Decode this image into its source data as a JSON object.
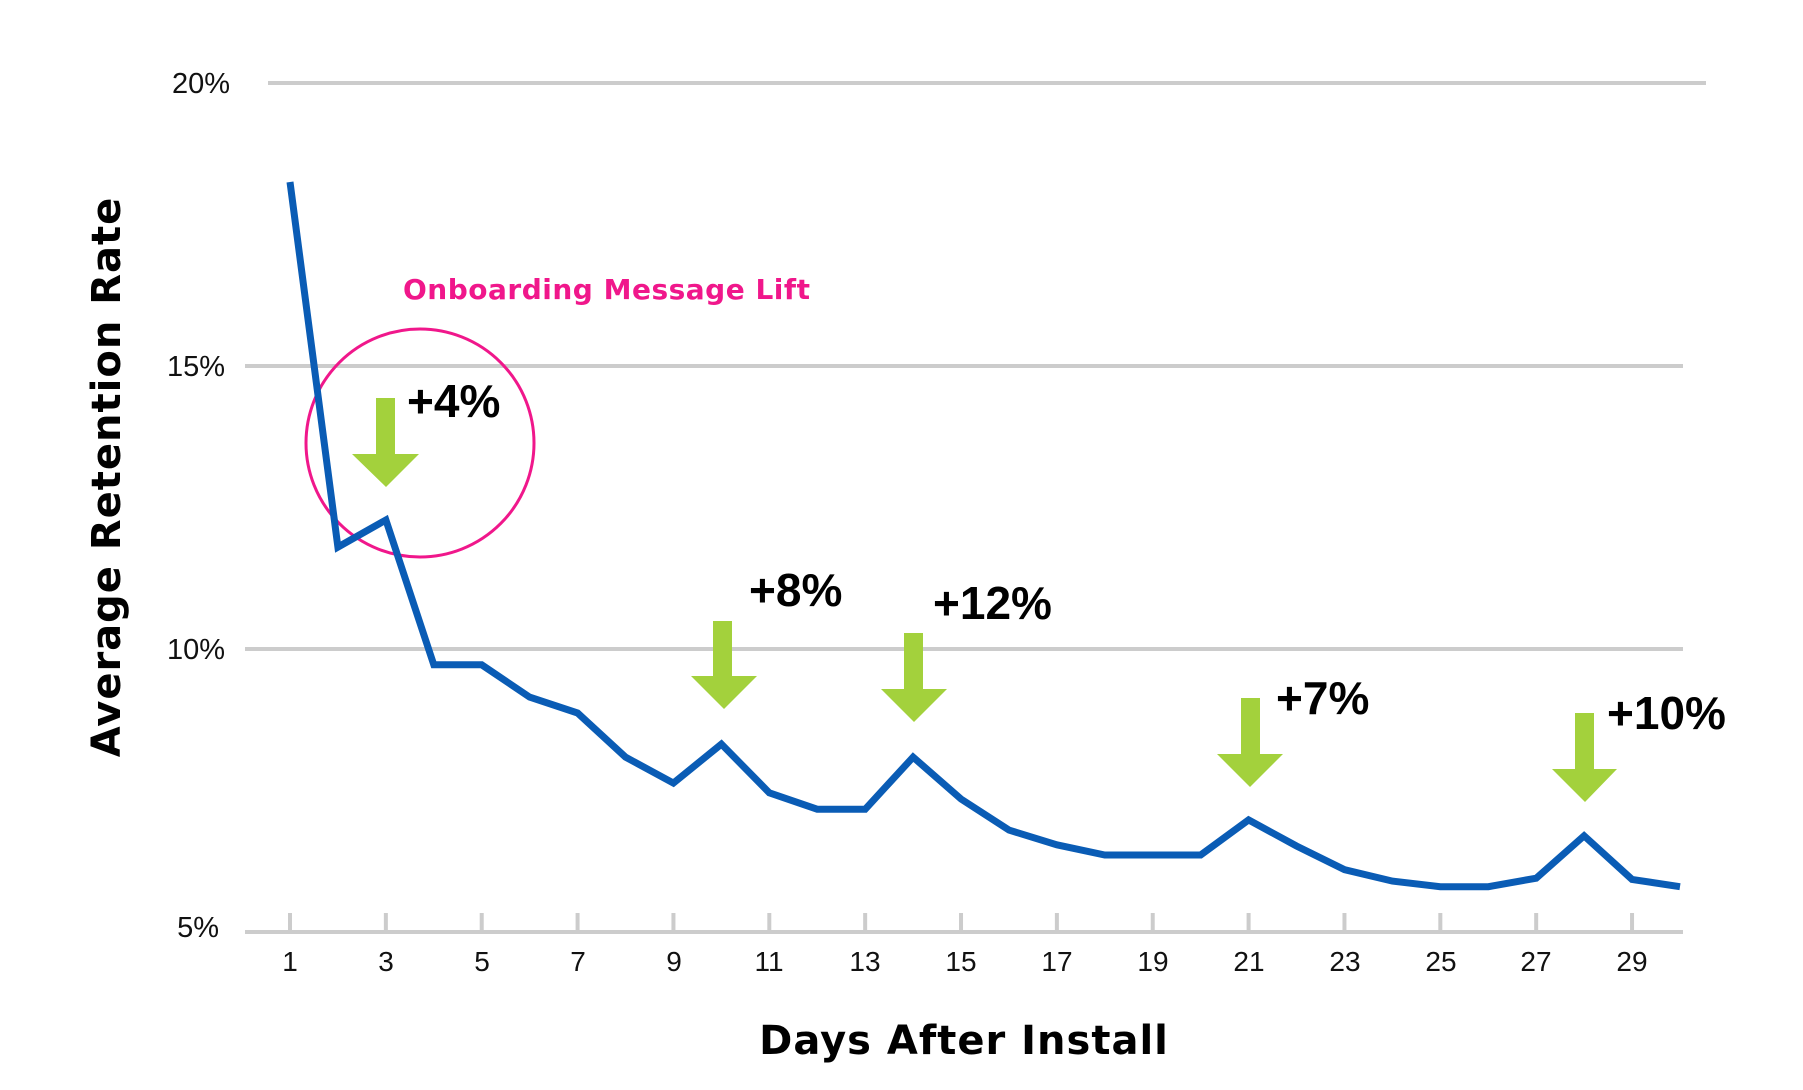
{
  "colors": {
    "line": "#0a5cb5",
    "arrow": "#a3d13c",
    "callout": "#f0178b",
    "grid": "#cccccc",
    "text": "#111111"
  },
  "chart_data": {
    "type": "line",
    "title": "",
    "xlabel": "Days After Install",
    "ylabel": "Average Retention Rate",
    "ylim": [
      5,
      20
    ],
    "xlim": [
      1,
      30
    ],
    "grid": true,
    "y_ticks": [
      "5%",
      "10%",
      "15%",
      "20%"
    ],
    "y_tick_values": [
      5,
      10,
      15,
      20
    ],
    "x_ticks": [
      "1",
      "3",
      "5",
      "7",
      "9",
      "11",
      "13",
      "15",
      "17",
      "19",
      "21",
      "23",
      "25",
      "27",
      "29"
    ],
    "x_tick_values": [
      1,
      3,
      5,
      7,
      9,
      11,
      13,
      15,
      17,
      19,
      21,
      23,
      25,
      27,
      29
    ],
    "legend": null,
    "series": [
      {
        "name": "Average Retention Rate",
        "x": [
          1,
          2,
          3,
          4,
          5,
          6,
          7,
          8,
          9,
          10,
          11,
          12,
          13,
          14,
          15,
          16,
          17,
          18,
          19,
          20,
          21,
          22,
          23,
          24,
          25,
          26,
          27,
          28,
          29,
          30
        ],
        "values": [
          18.25,
          11.8,
          12.28,
          9.72,
          9.72,
          9.15,
          8.87,
          8.09,
          7.63,
          8.32,
          7.46,
          7.17,
          7.17,
          8.09,
          7.35,
          6.8,
          6.54,
          6.36,
          6.36,
          6.36,
          6.98,
          6.52,
          6.1,
          5.9,
          5.8,
          5.8,
          5.95,
          6.7,
          5.93,
          5.8
        ]
      }
    ],
    "annotations": [
      {
        "day": 3,
        "label": "+4%"
      },
      {
        "day": 10,
        "label": "+8%"
      },
      {
        "day": 14,
        "label": "+12%"
      },
      {
        "day": 21,
        "label": "+7%"
      },
      {
        "day": 28,
        "label": "+10%"
      }
    ],
    "callout": {
      "text": "Onboarding Message Lift",
      "shape": "circle",
      "around_day": 3
    }
  },
  "labels": {
    "y_axis_title": "Average Retention Rate",
    "x_axis_title": "Days After Install",
    "callout_text": "Onboarding Message Lift",
    "y_ticks": [
      "5%",
      "10%",
      "15%",
      "20%"
    ],
    "x_ticks": [
      "1",
      "3",
      "5",
      "7",
      "9",
      "11",
      "13",
      "15",
      "17",
      "19",
      "21",
      "23",
      "25",
      "27",
      "29"
    ],
    "annotations": [
      "+4%",
      "+8%",
      "+12%",
      "+7%",
      "+10%"
    ]
  }
}
